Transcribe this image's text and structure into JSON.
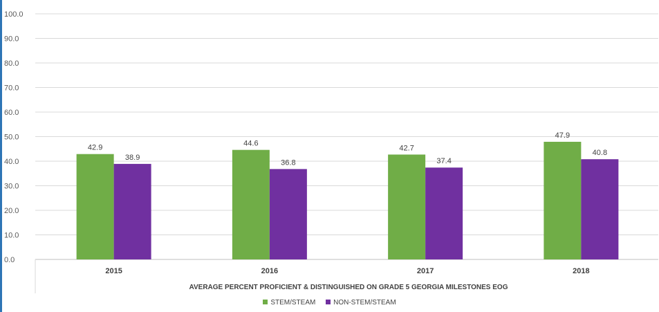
{
  "chart_data": {
    "type": "bar",
    "categories": [
      "2015",
      "2016",
      "2017",
      "2018"
    ],
    "series": [
      {
        "name": "STEM/STEAM",
        "values": [
          42.9,
          44.6,
          42.7,
          47.9
        ],
        "color": "#70ad47"
      },
      {
        "name": "NON-STEM/STEAM",
        "values": [
          38.9,
          36.8,
          37.4,
          40.8
        ],
        "color": "#7030a0"
      }
    ],
    "title": "",
    "xlabel": "AVERAGE PERCENT PROFICIENT & DISTINGUISHED ON GRADE 5 GEORGIA MILESTONES EOG",
    "ylabel": "",
    "ylim": [
      0,
      100
    ],
    "yticks": [
      "0.0",
      "10.0",
      "20.0",
      "30.0",
      "40.0",
      "50.0",
      "60.0",
      "70.0",
      "80.0",
      "90.0",
      "100.0"
    ],
    "grid": true,
    "legend": "bottom-center"
  }
}
